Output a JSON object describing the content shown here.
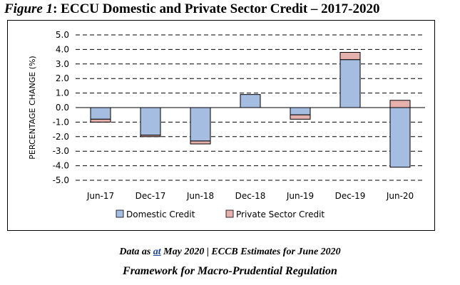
{
  "figure": {
    "label": "Figure 1",
    "title_rest": ": ECCU Domestic and Private Sector Credit – 2017-2020"
  },
  "footer": {
    "note_pre": "Data as ",
    "note_link": "at",
    "note_post": " May 2020 | ECCB Estimates for June 2020",
    "subtitle": "Framework for Macro-Prudential Regulation"
  },
  "colors": {
    "domestic": "#a4bde0",
    "domestic_edge": "#5a7fb8",
    "private": "#e6b1ad",
    "private_edge": "#b36a65",
    "grid": "#000000"
  },
  "chart_data": {
    "type": "bar",
    "stacked": true,
    "categories": [
      "Jun-17",
      "Dec-17",
      "Jun-18",
      "Dec-18",
      "Jun-19",
      "Dec-19",
      "Jun-20"
    ],
    "series": [
      {
        "name": "Domestic Credit",
        "values": [
          -0.8,
          -1.9,
          -2.3,
          0.9,
          -0.5,
          3.3,
          -4.1
        ]
      },
      {
        "name": "Private Sector Credit",
        "values": [
          -0.2,
          -0.1,
          -0.2,
          0.0,
          -0.3,
          0.5,
          0.5
        ]
      }
    ],
    "ylabel": "PERCENTAGE CHANGE (%)",
    "xlabel": "",
    "ylim": [
      -5.0,
      5.0
    ],
    "yticks": [
      5.0,
      4.0,
      3.0,
      2.0,
      1.0,
      0.0,
      -1.0,
      -2.0,
      -3.0,
      -4.0,
      -5.0
    ],
    "ytick_labels": [
      "5.0",
      "4.0",
      "3.0",
      "2.0",
      "1.0",
      "0.0",
      "-1.0",
      "-2.0",
      "-3.0",
      "-4.0",
      "-5.0"
    ],
    "grid": "dashed horizontal",
    "legend_position": "bottom"
  }
}
